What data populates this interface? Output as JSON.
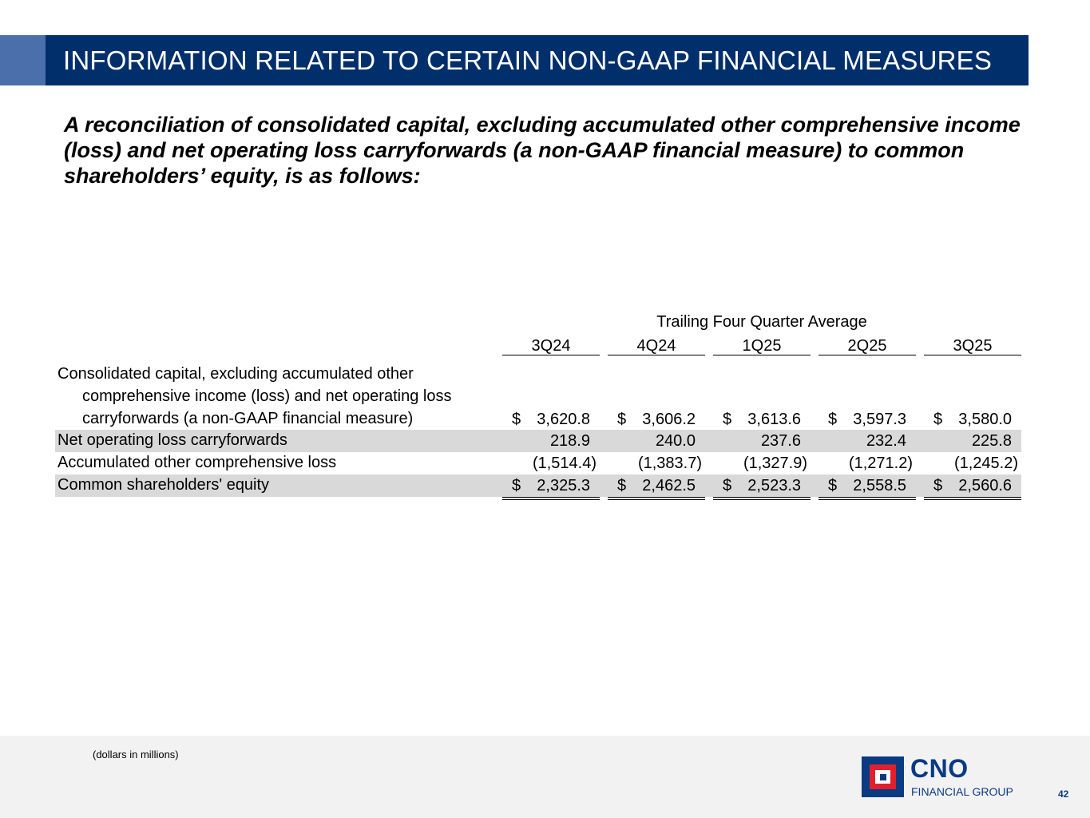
{
  "header": {
    "title": "INFORMATION RELATED TO CERTAIN NON-GAAP FINANCIAL MEASURES"
  },
  "subtitle": "A reconciliation of consolidated capital, excluding accumulated other comprehensive income (loss) and net operating loss carryforwards (a non-GAAP financial measure) to common shareholders’ equity, is as follows:",
  "table": {
    "period_header": "Trailing Four Quarter Average",
    "columns": [
      "3Q24",
      "4Q24",
      "1Q25",
      "2Q25",
      "3Q25"
    ],
    "rows": [
      {
        "label_lines": [
          "Consolidated capital, excluding accumulated other",
          "comprehensive income (loss) and net operating loss",
          "carryforwards (a non-GAAP financial measure)"
        ],
        "currency": "$",
        "values": [
          "3,620.8",
          "3,606.2",
          "3,613.6",
          "3,597.3",
          "3,580.0"
        ]
      },
      {
        "label": "Net operating loss carryforwards",
        "values": [
          "218.9",
          "240.0",
          "237.6",
          "232.4",
          "225.8"
        ]
      },
      {
        "label": "Accumulated other comprehensive loss",
        "values": [
          "(1,514.4)",
          "(1,383.7)",
          "(1,327.9)",
          "(1,271.2)",
          "(1,245.2)"
        ]
      },
      {
        "label": "Common shareholders' equity",
        "currency": "$",
        "values": [
          "2,325.3",
          "2,462.5",
          "2,523.3",
          "2,558.5",
          "2,560.6"
        ]
      }
    ]
  },
  "footer": {
    "note": "(dollars in millions)",
    "logo": {
      "name": "CNO",
      "subtitle": "FINANCIAL GROUP"
    },
    "page_number": "42"
  },
  "colors": {
    "header_bg": "#002f6c",
    "accent": "#4a6faa",
    "row_shade": "#d9d9d9",
    "logo_blue": "#0a3a82",
    "logo_red": "#e0202d"
  }
}
